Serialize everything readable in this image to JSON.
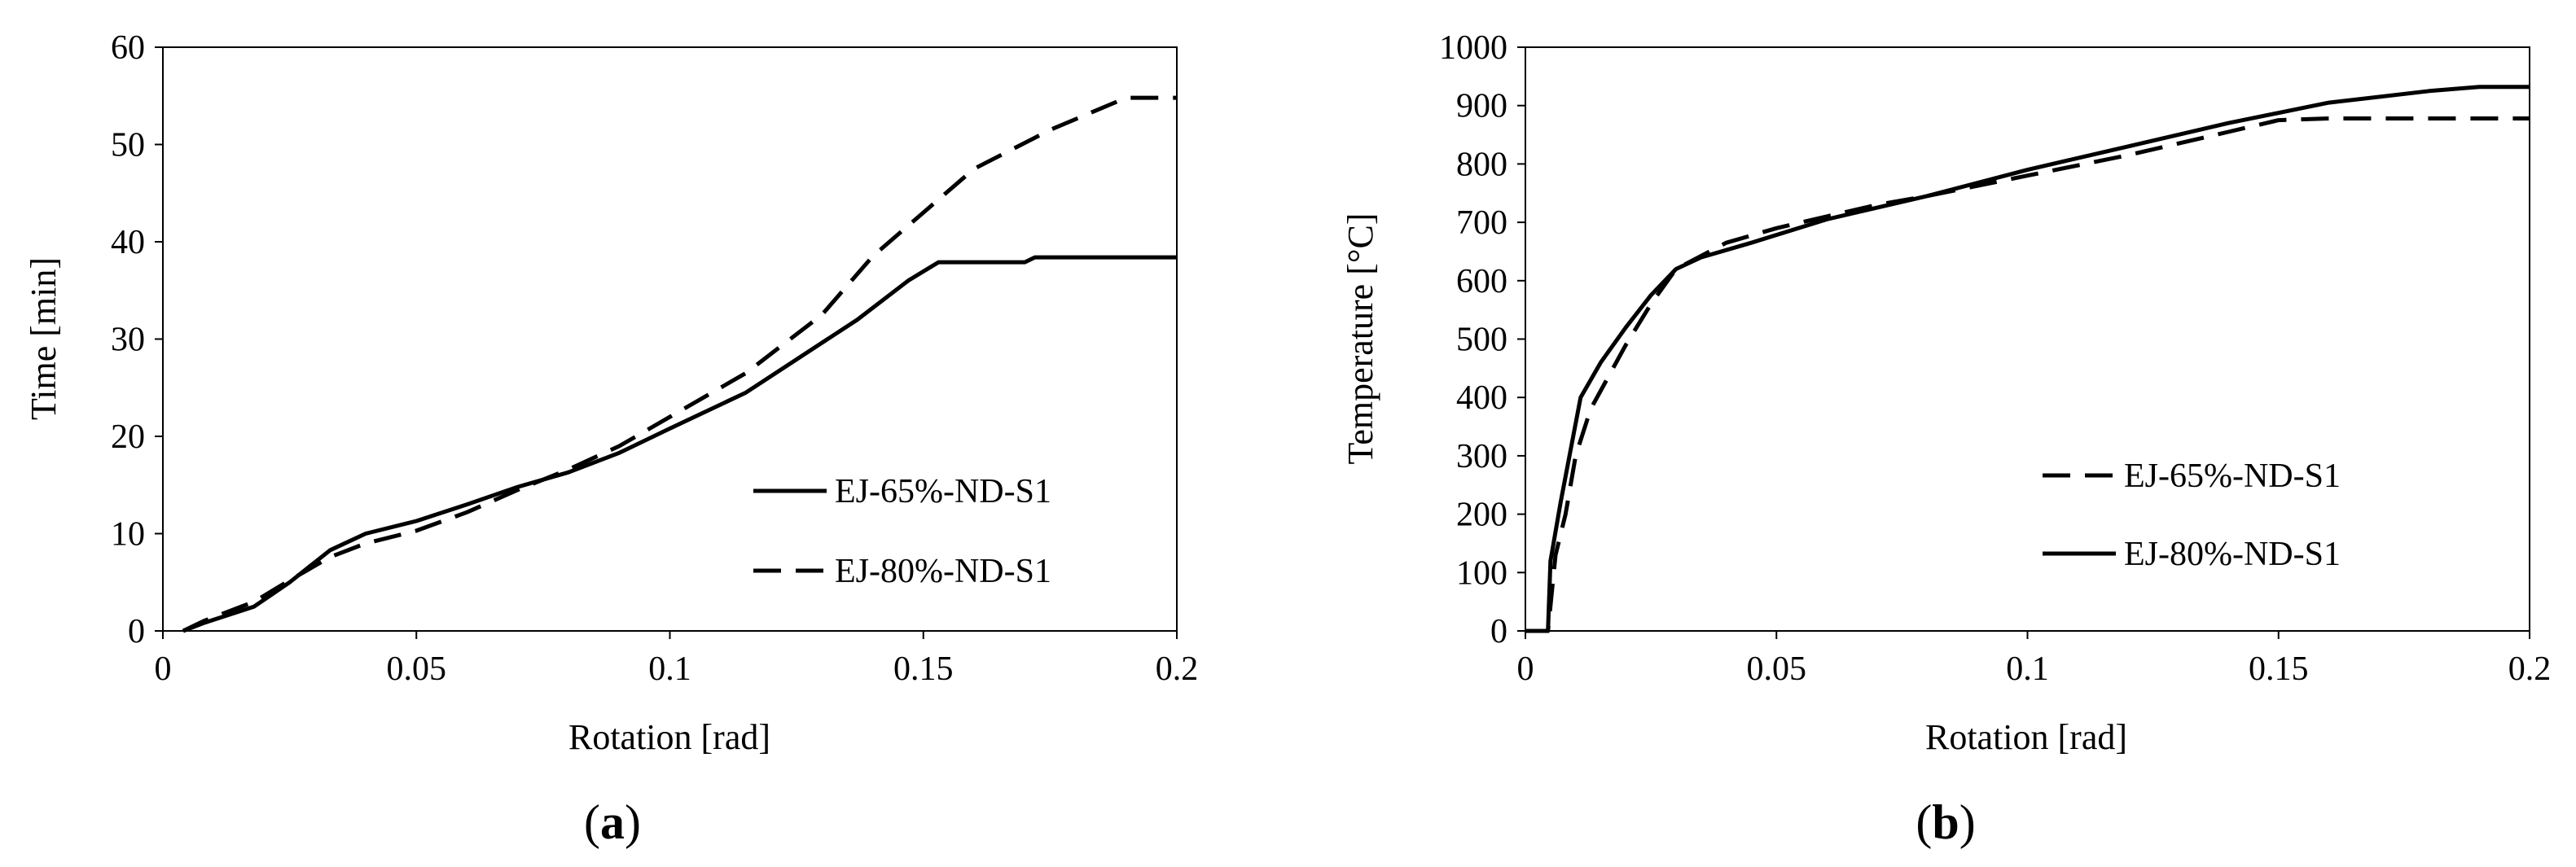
{
  "chart_data": [
    {
      "type": "line",
      "panel_label": {
        "open": "(",
        "letter": "a",
        "close": ")"
      },
      "xlabel": "Rotation [rad]",
      "ylabel": "Time [min]",
      "xlim": [
        0,
        0.2
      ],
      "ylim": [
        0,
        60
      ],
      "xticks": [
        0,
        0.05,
        0.1,
        0.15,
        0.2
      ],
      "xtick_labels": [
        "0",
        "0.05",
        "0.1",
        "0.15",
        "0.2"
      ],
      "yticks": [
        0,
        10,
        20,
        30,
        40,
        50,
        60
      ],
      "ytick_labels": [
        "0",
        "10",
        "20",
        "30",
        "40",
        "50",
        "60"
      ],
      "grid": false,
      "legend_position": "lower-right",
      "series": [
        {
          "name": "EJ-65%-ND-S1",
          "style": "solid",
          "points": [
            [
              0.004,
              0
            ],
            [
              0.008,
              0.8
            ],
            [
              0.018,
              2.5
            ],
            [
              0.025,
              5
            ],
            [
              0.033,
              8.3
            ],
            [
              0.04,
              10
            ],
            [
              0.05,
              11.3
            ],
            [
              0.06,
              13
            ],
            [
              0.07,
              14.8
            ],
            [
              0.08,
              16.3
            ],
            [
              0.09,
              18.3
            ],
            [
              0.1,
              20.8
            ],
            [
              0.115,
              24.5
            ],
            [
              0.137,
              32
            ],
            [
              0.147,
              36
            ],
            [
              0.153,
              37.9
            ],
            [
              0.17,
              37.9
            ],
            [
              0.172,
              38.4
            ],
            [
              0.2,
              38.4
            ]
          ]
        },
        {
          "name": "EJ-80%-ND-S1",
          "style": "dashed",
          "points": [
            [
              0.004,
              0
            ],
            [
              0.008,
              1
            ],
            [
              0.018,
              3
            ],
            [
              0.025,
              5.2
            ],
            [
              0.033,
              7.6
            ],
            [
              0.04,
              9
            ],
            [
              0.05,
              10.3
            ],
            [
              0.06,
              12.2
            ],
            [
              0.07,
              14.5
            ],
            [
              0.08,
              16.6
            ],
            [
              0.09,
              19
            ],
            [
              0.1,
              22
            ],
            [
              0.115,
              26.5
            ],
            [
              0.13,
              32.5
            ],
            [
              0.14,
              38.5
            ],
            [
              0.15,
              43
            ],
            [
              0.16,
              47.5
            ],
            [
              0.175,
              51.5
            ],
            [
              0.19,
              54.8
            ],
            [
              0.2,
              54.8
            ]
          ]
        }
      ]
    },
    {
      "type": "line",
      "panel_label": {
        "open": "(",
        "letter": "b",
        "close": ")"
      },
      "xlabel": "Rotation [rad]",
      "ylabel": "Temperature [°C]",
      "xlim": [
        0,
        0.2
      ],
      "ylim": [
        0,
        1000
      ],
      "xticks": [
        0,
        0.05,
        0.1,
        0.15,
        0.2
      ],
      "xtick_labels": [
        "0",
        "0.05",
        "0.1",
        "0.15",
        "0.2"
      ],
      "yticks": [
        0,
        100,
        200,
        300,
        400,
        500,
        600,
        700,
        800,
        900,
        1000
      ],
      "ytick_labels": [
        "0",
        "100",
        "200",
        "300",
        "400",
        "500",
        "600",
        "700",
        "800",
        "900",
        "1000"
      ],
      "grid": false,
      "legend_position": "lower-right",
      "series": [
        {
          "name": "EJ-65%-ND-S1",
          "style": "dashed",
          "points": [
            [
              0,
              0
            ],
            [
              0.0045,
              0
            ],
            [
              0.006,
              130
            ],
            [
              0.008,
              200
            ],
            [
              0.01,
              300
            ],
            [
              0.013,
              380
            ],
            [
              0.02,
              490
            ],
            [
              0.025,
              560
            ],
            [
              0.03,
              620
            ],
            [
              0.04,
              665
            ],
            [
              0.05,
              690
            ],
            [
              0.06,
              710
            ],
            [
              0.07,
              730
            ],
            [
              0.08,
              745
            ],
            [
              0.1,
              780
            ],
            [
              0.12,
              815
            ],
            [
              0.14,
              855
            ],
            [
              0.15,
              875
            ],
            [
              0.16,
              878
            ],
            [
              0.2,
              878
            ]
          ]
        },
        {
          "name": "EJ-80%-ND-S1",
          "style": "solid",
          "points": [
            [
              0,
              0
            ],
            [
              0.0045,
              0
            ],
            [
              0.005,
              120
            ],
            [
              0.007,
              220
            ],
            [
              0.009,
              310
            ],
            [
              0.011,
              400
            ],
            [
              0.015,
              460
            ],
            [
              0.02,
              520
            ],
            [
              0.025,
              575
            ],
            [
              0.03,
              620
            ],
            [
              0.035,
              640
            ],
            [
              0.045,
              665
            ],
            [
              0.06,
              705
            ],
            [
              0.08,
              745
            ],
            [
              0.1,
              790
            ],
            [
              0.12,
              830
            ],
            [
              0.14,
              870
            ],
            [
              0.16,
              905
            ],
            [
              0.18,
              925
            ],
            [
              0.19,
              932
            ],
            [
              0.2,
              932
            ]
          ]
        }
      ]
    }
  ]
}
